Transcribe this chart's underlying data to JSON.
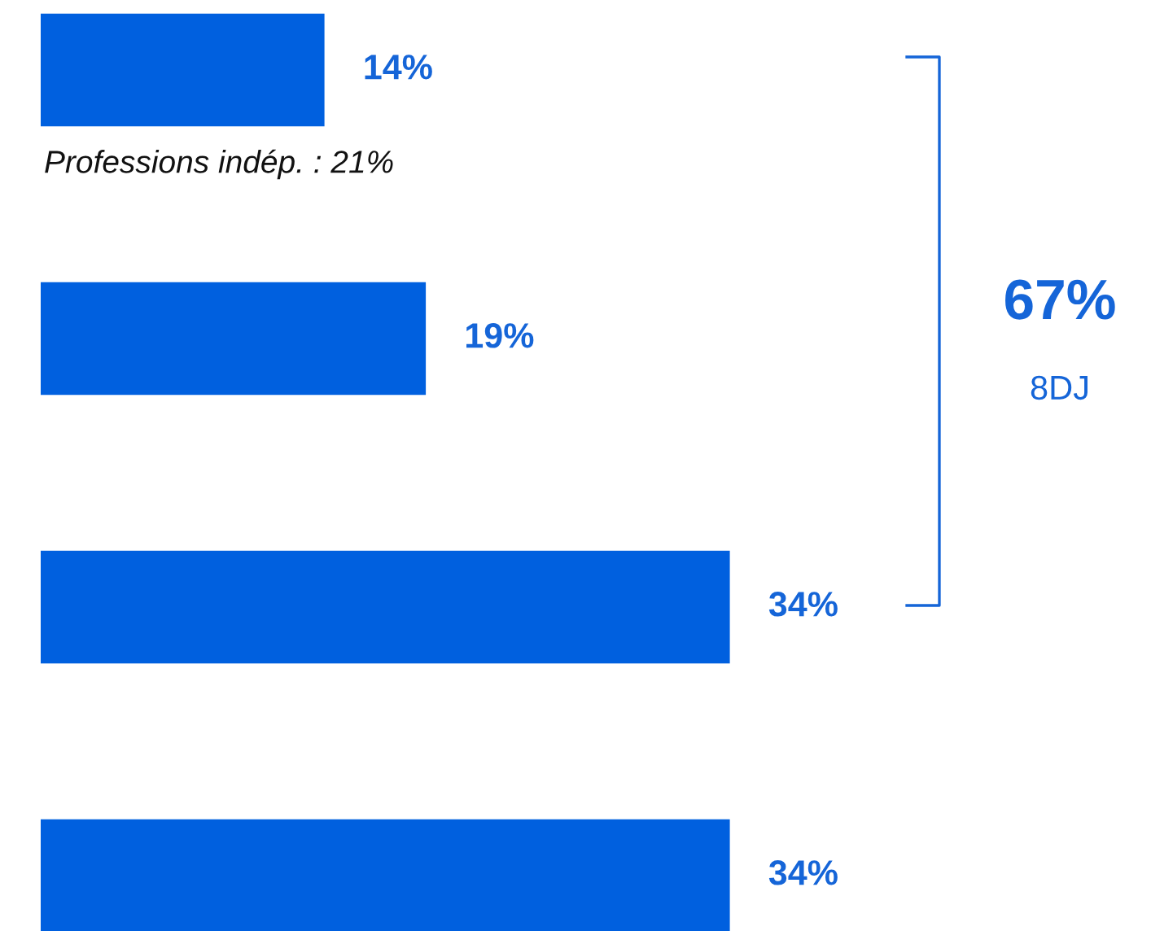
{
  "chart_data": {
    "type": "bar",
    "orientation": "horizontal",
    "categories": [
      null,
      null,
      null,
      null
    ],
    "series": [
      {
        "color": "#0060df",
        "values": [
          14,
          19,
          34,
          34
        ],
        "value_labels": [
          "14%",
          "19%",
          "34%",
          "34%"
        ]
      }
    ],
    "annotations": [
      "Professions indép. : 21%",
      "67%",
      "8DJ"
    ]
  }
}
